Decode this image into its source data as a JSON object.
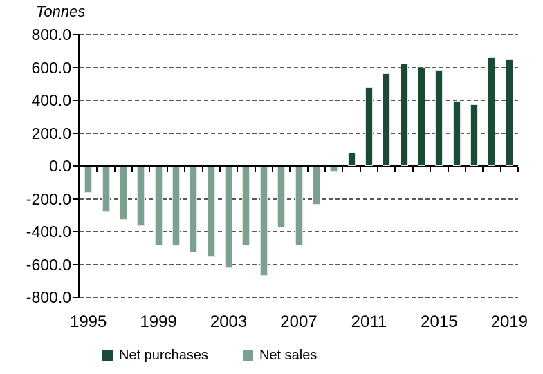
{
  "chart_data": {
    "type": "bar",
    "title": "Tonnes",
    "xlabel": "",
    "ylabel": "Tonnes",
    "x": [
      1995,
      1996,
      1997,
      1998,
      1999,
      2000,
      2001,
      2002,
      2003,
      2004,
      2005,
      2006,
      2007,
      2008,
      2009,
      2010,
      2011,
      2012,
      2013,
      2014,
      2015,
      2016,
      2017,
      2018,
      2019
    ],
    "values": [
      -160,
      -275,
      -325,
      -360,
      -480,
      -480,
      -520,
      -550,
      -615,
      -480,
      -665,
      -370,
      -480,
      -230,
      -35,
      80,
      480,
      565,
      625,
      600,
      585,
      395,
      375,
      660,
      650
    ],
    "series": [
      {
        "name": "Net purchases",
        "color": "#1b4b35",
        "applies_to": "positive values"
      },
      {
        "name": "Net sales",
        "color": "#7da18e",
        "applies_to": "negative values"
      }
    ],
    "ylim": [
      -800,
      800
    ],
    "yticks": [
      800,
      600,
      400,
      200,
      0,
      -200,
      -400,
      -600,
      -800
    ],
    "ytick_labels": [
      "800.0",
      "600.0",
      "400.0",
      "200.0",
      "0.0",
      "-200.0",
      "-400.0",
      "-600.0",
      "-800.0"
    ],
    "xtick_labels": [
      "1995",
      "1999",
      "2003",
      "2007",
      "2011",
      "2015",
      "2019"
    ],
    "xtick_every": 4,
    "grid": "horizontal dashed",
    "legend_position": "bottom"
  },
  "colors": {
    "background": "#ffffff",
    "axis": "#000000",
    "gridline": "#595959",
    "bar_border": "#d9e6dd",
    "net_purchases": "#1b4b35",
    "net_sales": "#7da18e"
  }
}
